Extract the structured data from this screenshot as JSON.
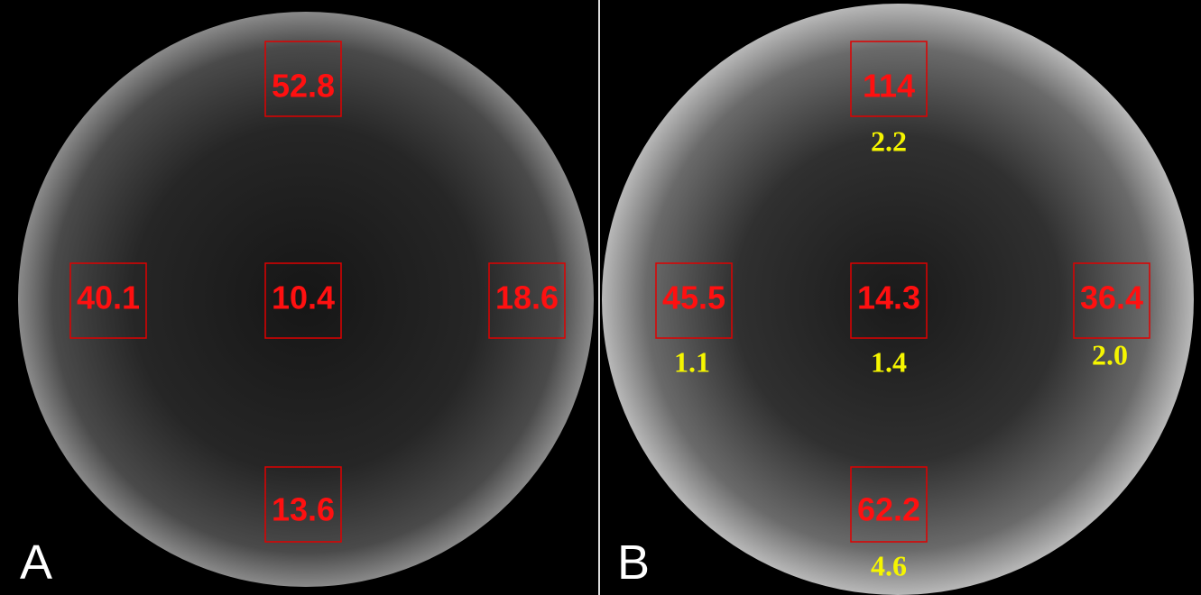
{
  "panels": [
    {
      "label": "A",
      "rois": [
        {
          "value": "52.8"
        },
        {
          "value": "40.1"
        },
        {
          "value": "10.4"
        },
        {
          "value": "18.6"
        },
        {
          "value": "13.6"
        }
      ]
    },
    {
      "label": "B",
      "rois": [
        {
          "value": "114",
          "ratio": "2.2"
        },
        {
          "value": "45.5",
          "ratio": "1.1"
        },
        {
          "value": "14.3",
          "ratio": "1.4"
        },
        {
          "value": "36.4",
          "ratio": "2.0"
        },
        {
          "value": "62.2",
          "ratio": "4.6"
        }
      ]
    }
  ]
}
